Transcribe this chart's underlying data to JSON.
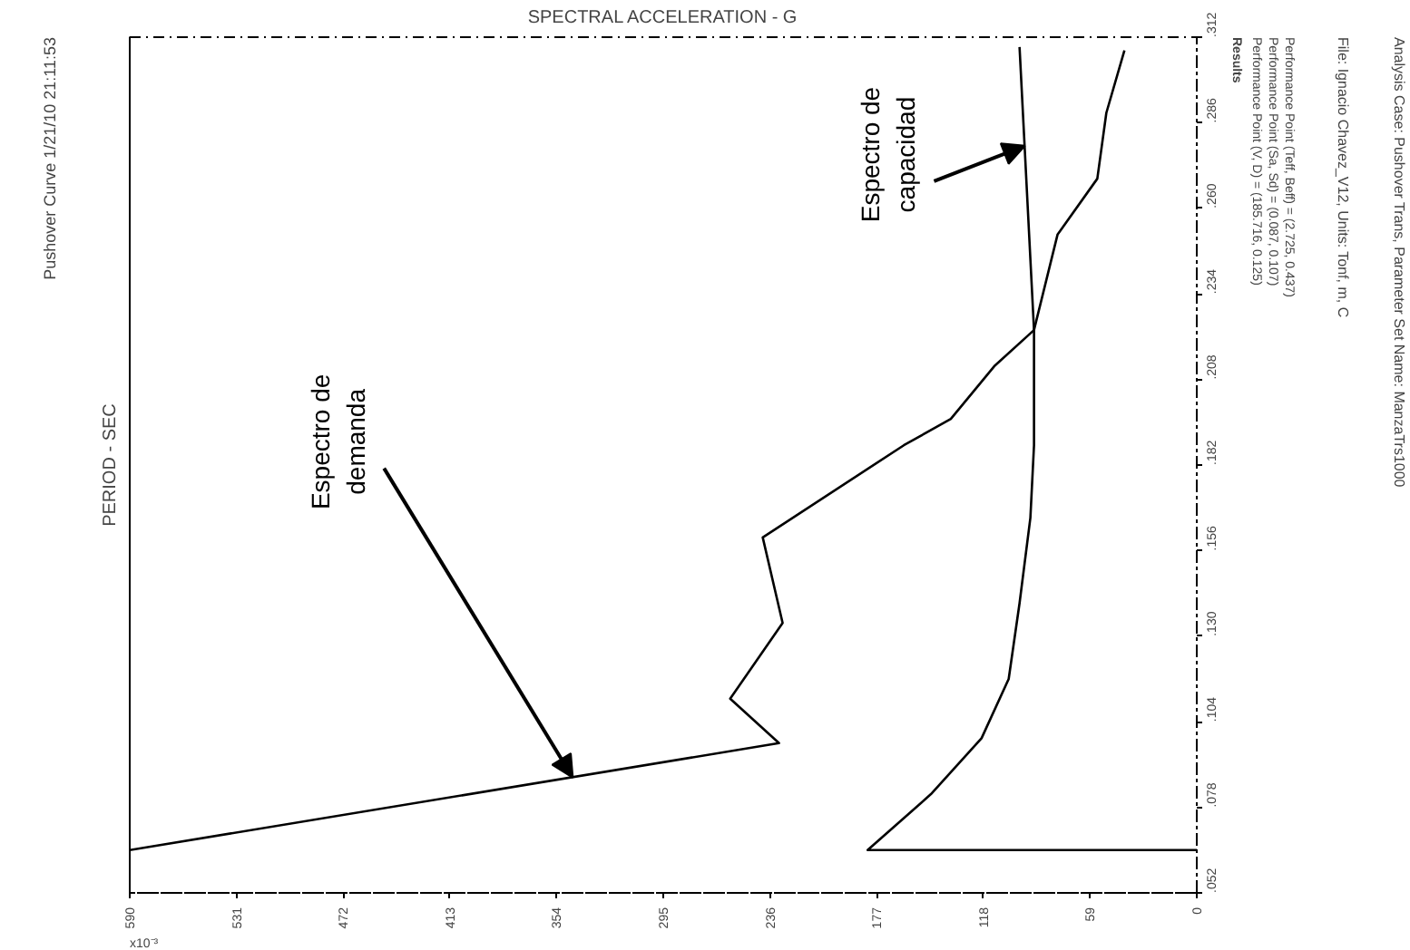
{
  "chart_data": {
    "type": "line",
    "title": "Pushover Curve 1/21/10 21:11:53",
    "xlabel": "SPECTRAL ACCELERATION - G",
    "ylabel": "PERIOD - SEC",
    "xlim": [
      590,
      0
    ],
    "xticks": [
      590,
      531,
      472,
      413,
      354,
      295,
      236,
      177,
      118,
      59,
      0
    ],
    "ylim": [
      0.052,
      0.312
    ],
    "yticks": [
      {
        "value": 0.052,
        "label": ".052"
      },
      {
        "value": 0.078,
        "label": ".078"
      },
      {
        "value": 0.104,
        "label": ".104"
      },
      {
        "value": 0.13,
        "label": ".130"
      },
      {
        "value": 0.156,
        "label": ".156"
      },
      {
        "value": 0.182,
        "label": ".182"
      },
      {
        "value": 0.208,
        "label": ".208"
      },
      {
        "value": 0.234,
        "label": ".234"
      },
      {
        "value": 0.26,
        "label": ".260"
      },
      {
        "value": 0.286,
        "label": ".286"
      },
      {
        "value": 0.312,
        "label": ".312"
      }
    ],
    "grid": false,
    "marker": "none",
    "line_style": "solid",
    "series": [
      {
        "color": "#000000",
        "x": [
          590,
          231,
          258,
          229,
          240,
          162,
          136,
          112,
          90,
          77,
          55,
          50,
          40
        ],
        "values": [
          0.065,
          0.0975,
          0.111,
          0.134,
          0.16,
          0.188,
          0.196,
          0.212,
          0.223,
          0.252,
          0.269,
          0.289,
          0.308
        ]
      },
      {
        "color": "#000000",
        "x": [
          0,
          182,
          147,
          119,
          104,
          98,
          92,
          90,
          90,
          98
        ],
        "values": [
          0.065,
          0.065,
          0.082,
          0.099,
          0.117,
          0.14,
          0.166,
          0.188,
          0.223,
          0.309
        ]
      }
    ],
    "annotations": [
      "x10⁻³",
      "Results",
      "Performance Point (V, D) = (185.716, 0.125)",
      "Performance Point (Sa, Sd) = (0.087, 0.107)",
      "Performance Point (Teff, Beff) = (2.725, 0.437)",
      "File: Ignacio Chavez_V12, Units: Tonf, m, C",
      "Analysis Case: Pushover Trans, Parameter Set Name: ManzaTrs1000",
      {
        "text": "Espectro de demanda",
        "x": 345,
        "y": 0.087
      },
      {
        "text": "Espectro de capacidad",
        "x": 95,
        "y": 0.279
      }
    ]
  }
}
